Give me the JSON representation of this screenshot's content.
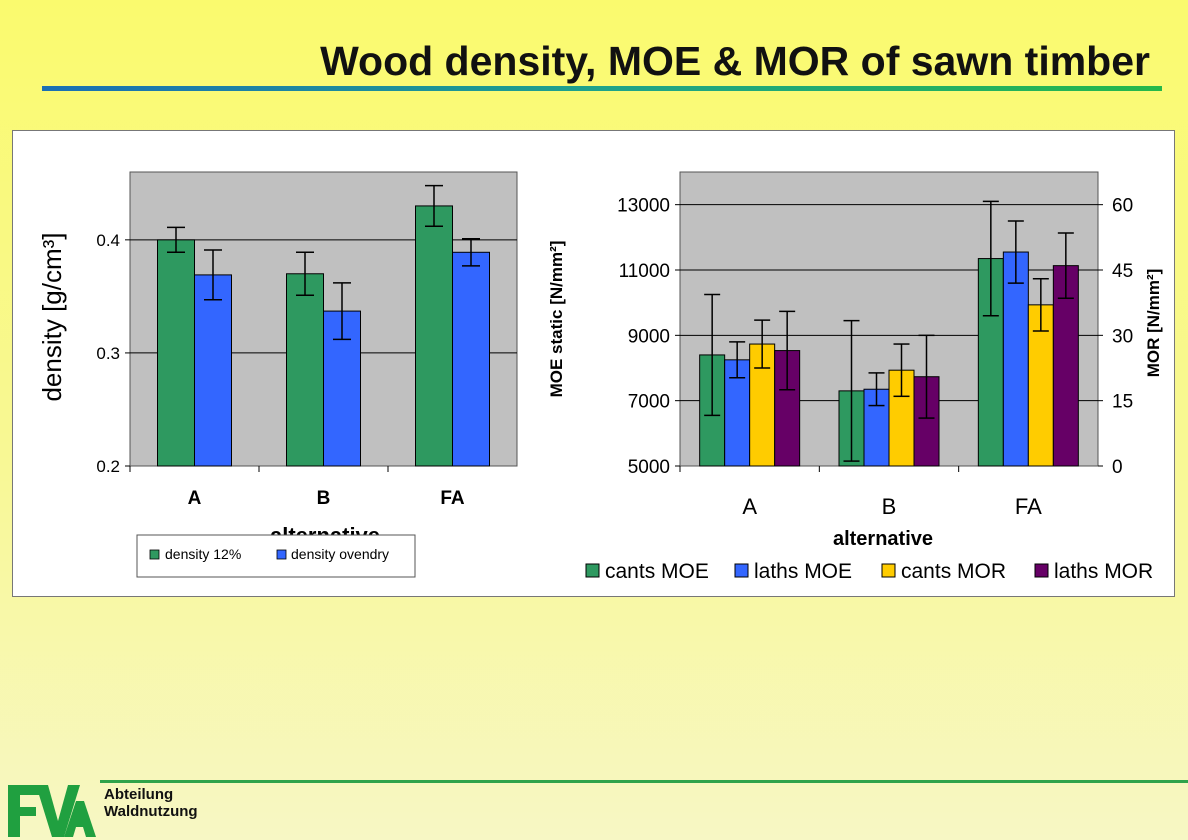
{
  "header": {
    "title": "Wood density, MOE & MOR of sawn timber"
  },
  "footer": {
    "dept_line1": "Abteilung",
    "dept_line2": "Waldnutzung"
  },
  "colors": {
    "green": "#2e9960",
    "blue": "#3366ff",
    "yellow": "#ffcc00",
    "purple": "#660066",
    "plot_bg": "#c0c0c0"
  },
  "chart_data": [
    {
      "type": "bar",
      "categories": [
        "A",
        "B",
        "FA"
      ],
      "ylabel": "density [g/cm³]",
      "xlabel": "alternative",
      "ylim": [
        0.2,
        0.46
      ],
      "yticks": [
        0.2,
        0.3,
        0.4
      ],
      "ytick_labels": [
        "0.2",
        "0.3",
        "0.4"
      ],
      "grid": true,
      "legend_position": "bottom-left",
      "series": [
        {
          "name": "density 12%",
          "color": "#2e9960",
          "values": [
            0.4,
            0.37,
            0.43
          ],
          "err": [
            0.011,
            0.019,
            0.018
          ]
        },
        {
          "name": "density ovendry",
          "color": "#3366ff",
          "values": [
            0.369,
            0.337,
            0.389
          ],
          "err": [
            0.022,
            0.025,
            0.012
          ]
        }
      ]
    },
    {
      "type": "bar",
      "categories": [
        "A",
        "B",
        "FA"
      ],
      "xlabel": "alternative",
      "ylabel": "MOE static [N/mm²]",
      "y2label": "MOR [N/mm²]",
      "ylim": [
        5000,
        14000
      ],
      "yticks": [
        5000,
        7000,
        9000,
        11000,
        13000
      ],
      "ytick_labels": [
        "5000",
        "7000",
        "9000",
        "11000",
        "13000"
      ],
      "y2lim": [
        0,
        67.5
      ],
      "y2ticks": [
        0,
        15,
        30,
        45,
        60
      ],
      "y2tick_labels": [
        "0",
        "15",
        "30",
        "45",
        "60"
      ],
      "grid": true,
      "legend_position": "bottom",
      "series": [
        {
          "name": "cants MOE",
          "axis": "left",
          "color": "#2e9960",
          "values": [
            8400,
            7300,
            11350
          ],
          "err": [
            1850,
            2150,
            1750
          ]
        },
        {
          "name": "laths MOE",
          "axis": "left",
          "color": "#3366ff",
          "values": [
            8250,
            7350,
            11550
          ],
          "err": [
            550,
            500,
            950
          ]
        },
        {
          "name": "cants MOR",
          "axis": "right",
          "color": "#ffcc00",
          "values": [
            28,
            22,
            37
          ],
          "err": [
            5.5,
            6,
            6
          ]
        },
        {
          "name": "laths MOR",
          "axis": "right",
          "color": "#660066",
          "values": [
            26.5,
            20.5,
            46
          ],
          "err": [
            9,
            9.5,
            7.5
          ]
        }
      ]
    }
  ]
}
